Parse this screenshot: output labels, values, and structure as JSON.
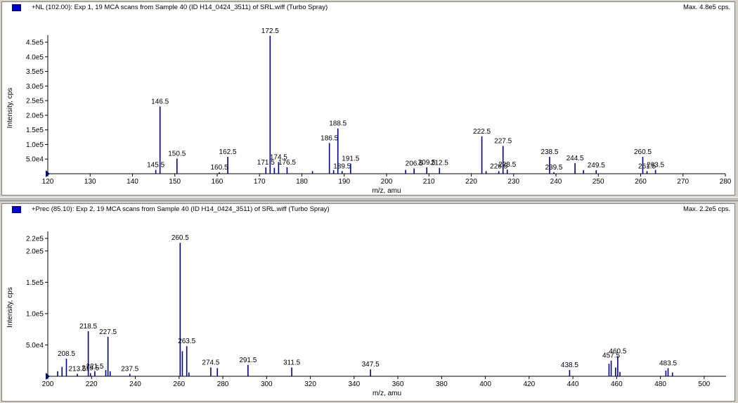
{
  "panes": [
    {
      "title": "+NL (102.00): Exp 1, 19 MCA scans from Sample 40 (ID H14_0424_3511) of SRL.wiff (Turbo Spray)",
      "max_label": "Max. 4.8e5 cps."
    },
    {
      "title": "+Prec (85.10): Exp 2, 19 MCA scans from Sample 40 (ID H14_0424_3511) of SRL.wiff (Turbo Spray)",
      "max_label": "Max. 2.2e5 cps."
    }
  ],
  "colors": {
    "series": "#00008b",
    "accent": "#0000cc"
  },
  "chart_data": [
    {
      "type": "bar",
      "style": "stick spectrum",
      "xlabel": "m/z, amu",
      "ylabel": "Intensity, cps",
      "xlim": [
        120,
        280
      ],
      "ylim": [
        0,
        480000
      ],
      "x_ticks": [
        120,
        130,
        140,
        150,
        160,
        170,
        180,
        190,
        200,
        210,
        220,
        230,
        240,
        250,
        260,
        270,
        280
      ],
      "y_ticks": [
        {
          "v": 50000,
          "label": "5.0e4"
        },
        {
          "v": 100000,
          "label": "1.0e5"
        },
        {
          "v": 150000,
          "label": "1.5e5"
        },
        {
          "v": 200000,
          "label": "2.0e5"
        },
        {
          "v": 250000,
          "label": "2.5e5"
        },
        {
          "v": 300000,
          "label": "3.0e5"
        },
        {
          "v": 350000,
          "label": "3.5e5"
        },
        {
          "v": 400000,
          "label": "4.0e5"
        },
        {
          "v": 450000,
          "label": "4.5e5"
        }
      ],
      "peaks": [
        {
          "x": 145.5,
          "y": 13000,
          "label": "145.5"
        },
        {
          "x": 146.5,
          "y": 230000,
          "label": "146.5"
        },
        {
          "x": 150.5,
          "y": 52000,
          "label": "150.5"
        },
        {
          "x": 160.5,
          "y": 5000,
          "label": "160.5"
        },
        {
          "x": 162.5,
          "y": 58000,
          "label": "162.5"
        },
        {
          "x": 171.5,
          "y": 22000,
          "label": "171.5"
        },
        {
          "x": 172.5,
          "y": 472000,
          "label": "172.5"
        },
        {
          "x": 173.5,
          "y": 20000
        },
        {
          "x": 174.5,
          "y": 40000,
          "label": "174.5"
        },
        {
          "x": 176.5,
          "y": 22000,
          "label": "176.5"
        },
        {
          "x": 182.5,
          "y": 9000
        },
        {
          "x": 186.5,
          "y": 105000,
          "label": "186.5"
        },
        {
          "x": 187.5,
          "y": 12000
        },
        {
          "x": 188.5,
          "y": 155000,
          "label": "188.5"
        },
        {
          "x": 189.5,
          "y": 9000,
          "label": "189.5"
        },
        {
          "x": 191.5,
          "y": 35000,
          "label": "191.5"
        },
        {
          "x": 204.5,
          "y": 13000
        },
        {
          "x": 206.5,
          "y": 18000,
          "label": "206.5"
        },
        {
          "x": 209.5,
          "y": 22000,
          "label": "209.5"
        },
        {
          "x": 212.5,
          "y": 20000,
          "label": "212.5"
        },
        {
          "x": 222.5,
          "y": 128000,
          "label": "222.5"
        },
        {
          "x": 223.5,
          "y": 9000
        },
        {
          "x": 226.5,
          "y": 9000,
          "label": "226.5"
        },
        {
          "x": 227.5,
          "y": 95000,
          "label": "227.5"
        },
        {
          "x": 228.5,
          "y": 14000,
          "label": "228.5"
        },
        {
          "x": 238.5,
          "y": 58000,
          "label": "238.5"
        },
        {
          "x": 239.5,
          "y": 5000,
          "label": "239.5"
        },
        {
          "x": 244.5,
          "y": 36000,
          "label": "244.5"
        },
        {
          "x": 246.5,
          "y": 12000
        },
        {
          "x": 249.5,
          "y": 12000,
          "label": "249.5"
        },
        {
          "x": 260.5,
          "y": 58000,
          "label": "260.5"
        },
        {
          "x": 261.5,
          "y": 9000,
          "label": "261.5"
        },
        {
          "x": 263.5,
          "y": 13000,
          "label": "263.5"
        }
      ]
    },
    {
      "type": "bar",
      "style": "stick spectrum",
      "xlabel": "m/z, amu",
      "ylabel": "Intensity, cps",
      "xlim": [
        200,
        510
      ],
      "ylim": [
        0,
        220000
      ],
      "x_ticks": [
        200,
        220,
        240,
        260,
        280,
        300,
        320,
        340,
        360,
        380,
        400,
        420,
        440,
        460,
        480,
        500
      ],
      "y_ticks": [
        {
          "v": 50000,
          "label": "5.0e4"
        },
        {
          "v": 100000,
          "label": "1.0e5"
        },
        {
          "v": 150000,
          "label": "1.5e5"
        },
        {
          "v": 200000,
          "label": "2.0e5"
        },
        {
          "v": 220000,
          "label": "2.2e5"
        }
      ],
      "peaks": [
        {
          "x": 204.5,
          "y": 8000
        },
        {
          "x": 206.5,
          "y": 15000
        },
        {
          "x": 208.5,
          "y": 28000,
          "label": "208.5"
        },
        {
          "x": 213.5,
          "y": 4000,
          "label": "213.5"
        },
        {
          "x": 218.5,
          "y": 72000,
          "label": "218.5"
        },
        {
          "x": 219.5,
          "y": 5000,
          "label": "219.5"
        },
        {
          "x": 221.5,
          "y": 8000,
          "label": "221.5"
        },
        {
          "x": 226.5,
          "y": 10000
        },
        {
          "x": 227.5,
          "y": 63000,
          "label": "227.5"
        },
        {
          "x": 228.5,
          "y": 8000
        },
        {
          "x": 237.5,
          "y": 4000,
          "label": "237.5"
        },
        {
          "x": 260.5,
          "y": 213000,
          "label": "260.5"
        },
        {
          "x": 261.5,
          "y": 40000
        },
        {
          "x": 263.5,
          "y": 48000,
          "label": "263.5"
        },
        {
          "x": 264.5,
          "y": 6000
        },
        {
          "x": 274.5,
          "y": 14000,
          "label": "274.5"
        },
        {
          "x": 277.5,
          "y": 13000
        },
        {
          "x": 291.5,
          "y": 18000,
          "label": "291.5"
        },
        {
          "x": 311.5,
          "y": 14000,
          "label": "311.5"
        },
        {
          "x": 347.5,
          "y": 11000,
          "label": "347.5"
        },
        {
          "x": 438.5,
          "y": 10000,
          "label": "438.5"
        },
        {
          "x": 456.5,
          "y": 20000
        },
        {
          "x": 457.5,
          "y": 25000,
          "label": "457.5"
        },
        {
          "x": 459.5,
          "y": 14000
        },
        {
          "x": 460.5,
          "y": 32000,
          "label": "460.5"
        },
        {
          "x": 461.5,
          "y": 7000
        },
        {
          "x": 482.5,
          "y": 9000
        },
        {
          "x": 483.5,
          "y": 13000,
          "label": "483.5"
        },
        {
          "x": 485.5,
          "y": 6000
        }
      ]
    }
  ]
}
